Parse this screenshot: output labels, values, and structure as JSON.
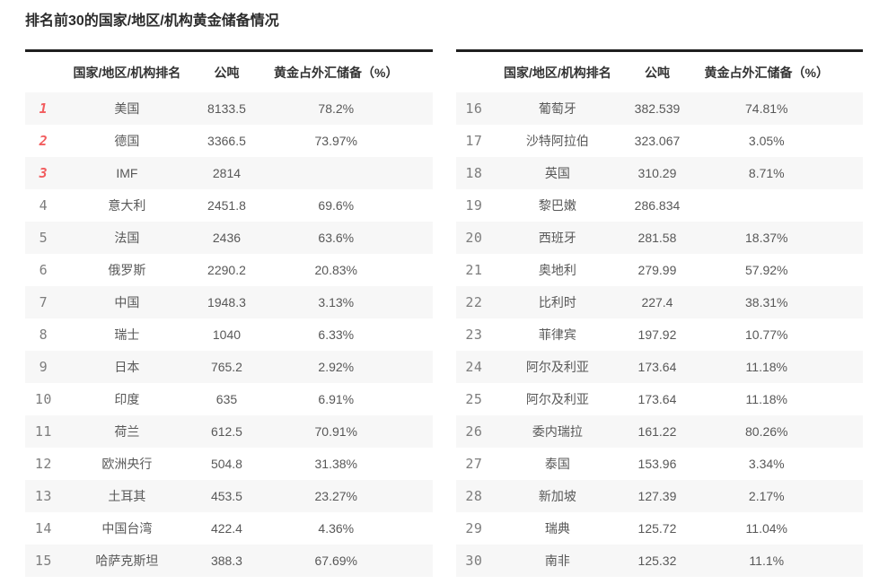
{
  "page_title": "排名前30的国家/地区/机构黄金储备情况",
  "colors": {
    "rank_top3": "#f25c5e",
    "rank_normal": "#7d7d7d",
    "row_alt_bg": "#f7f7f7",
    "table_top_border": "#1f1f1f",
    "header_text": "#333333",
    "cell_text": "#585858"
  },
  "tables": [
    {
      "headers": [
        "",
        "国家/地区/机构排名",
        "公吨",
        "黄金占外汇储备（%）"
      ],
      "rows": [
        {
          "rank": "1",
          "name": "美国",
          "tonnes": "8133.5",
          "pct": "78.2%",
          "top3": true
        },
        {
          "rank": "2",
          "name": "德国",
          "tonnes": "3366.5",
          "pct": "73.97%",
          "top3": true
        },
        {
          "rank": "3",
          "name": "IMF",
          "tonnes": "2814",
          "pct": "",
          "top3": true
        },
        {
          "rank": "4",
          "name": "意大利",
          "tonnes": "2451.8",
          "pct": "69.6%",
          "top3": false
        },
        {
          "rank": "5",
          "name": "法国",
          "tonnes": "2436",
          "pct": "63.6%",
          "top3": false
        },
        {
          "rank": "6",
          "name": "俄罗斯",
          "tonnes": "2290.2",
          "pct": "20.83%",
          "top3": false
        },
        {
          "rank": "7",
          "name": "中国",
          "tonnes": "1948.3",
          "pct": "3.13%",
          "top3": false
        },
        {
          "rank": "8",
          "name": "瑞士",
          "tonnes": "1040",
          "pct": "6.33%",
          "top3": false
        },
        {
          "rank": "9",
          "name": "日本",
          "tonnes": "765.2",
          "pct": "2.92%",
          "top3": false
        },
        {
          "rank": "10",
          "name": "印度",
          "tonnes": "635",
          "pct": "6.91%",
          "top3": false
        },
        {
          "rank": "11",
          "name": "荷兰",
          "tonnes": "612.5",
          "pct": "70.91%",
          "top3": false
        },
        {
          "rank": "12",
          "name": "欧洲央行",
          "tonnes": "504.8",
          "pct": "31.38%",
          "top3": false
        },
        {
          "rank": "13",
          "name": "土耳其",
          "tonnes": "453.5",
          "pct": "23.27%",
          "top3": false
        },
        {
          "rank": "14",
          "name": "中国台湾",
          "tonnes": "422.4",
          "pct": "4.36%",
          "top3": false
        },
        {
          "rank": "15",
          "name": "哈萨克斯坦",
          "tonnes": "388.3",
          "pct": "67.69%",
          "top3": false
        }
      ]
    },
    {
      "headers": [
        "",
        "国家/地区/机构排名",
        "公吨",
        "黄金占外汇储备（%）"
      ],
      "rows": [
        {
          "rank": "16",
          "name": "葡萄牙",
          "tonnes": "382.539",
          "pct": "74.81%",
          "top3": false
        },
        {
          "rank": "17",
          "name": "沙特阿拉伯",
          "tonnes": "323.067",
          "pct": "3.05%",
          "top3": false
        },
        {
          "rank": "18",
          "name": "英国",
          "tonnes": "310.29",
          "pct": "8.71%",
          "top3": false
        },
        {
          "rank": "19",
          "name": "黎巴嫩",
          "tonnes": "286.834",
          "pct": "",
          "top3": false
        },
        {
          "rank": "20",
          "name": "西班牙",
          "tonnes": "281.58",
          "pct": "18.37%",
          "top3": false
        },
        {
          "rank": "21",
          "name": "奥地利",
          "tonnes": "279.99",
          "pct": "57.92%",
          "top3": false
        },
        {
          "rank": "22",
          "name": "比利时",
          "tonnes": "227.4",
          "pct": "38.31%",
          "top3": false
        },
        {
          "rank": "23",
          "name": "菲律宾",
          "tonnes": "197.92",
          "pct": "10.77%",
          "top3": false
        },
        {
          "rank": "24",
          "name": "阿尔及利亚",
          "tonnes": "173.64",
          "pct": "11.18%",
          "top3": false
        },
        {
          "rank": "25",
          "name": "阿尔及利亚",
          "tonnes": "173.64",
          "pct": "11.18%",
          "top3": false
        },
        {
          "rank": "26",
          "name": "委内瑞拉",
          "tonnes": "161.22",
          "pct": "80.26%",
          "top3": false
        },
        {
          "rank": "27",
          "name": "泰国",
          "tonnes": "153.96",
          "pct": "3.34%",
          "top3": false
        },
        {
          "rank": "28",
          "name": "新加坡",
          "tonnes": "127.39",
          "pct": "2.17%",
          "top3": false
        },
        {
          "rank": "29",
          "name": "瑞典",
          "tonnes": "125.72",
          "pct": "11.04%",
          "top3": false
        },
        {
          "rank": "30",
          "name": "南非",
          "tonnes": "125.32",
          "pct": "11.1%",
          "top3": false
        }
      ]
    }
  ]
}
